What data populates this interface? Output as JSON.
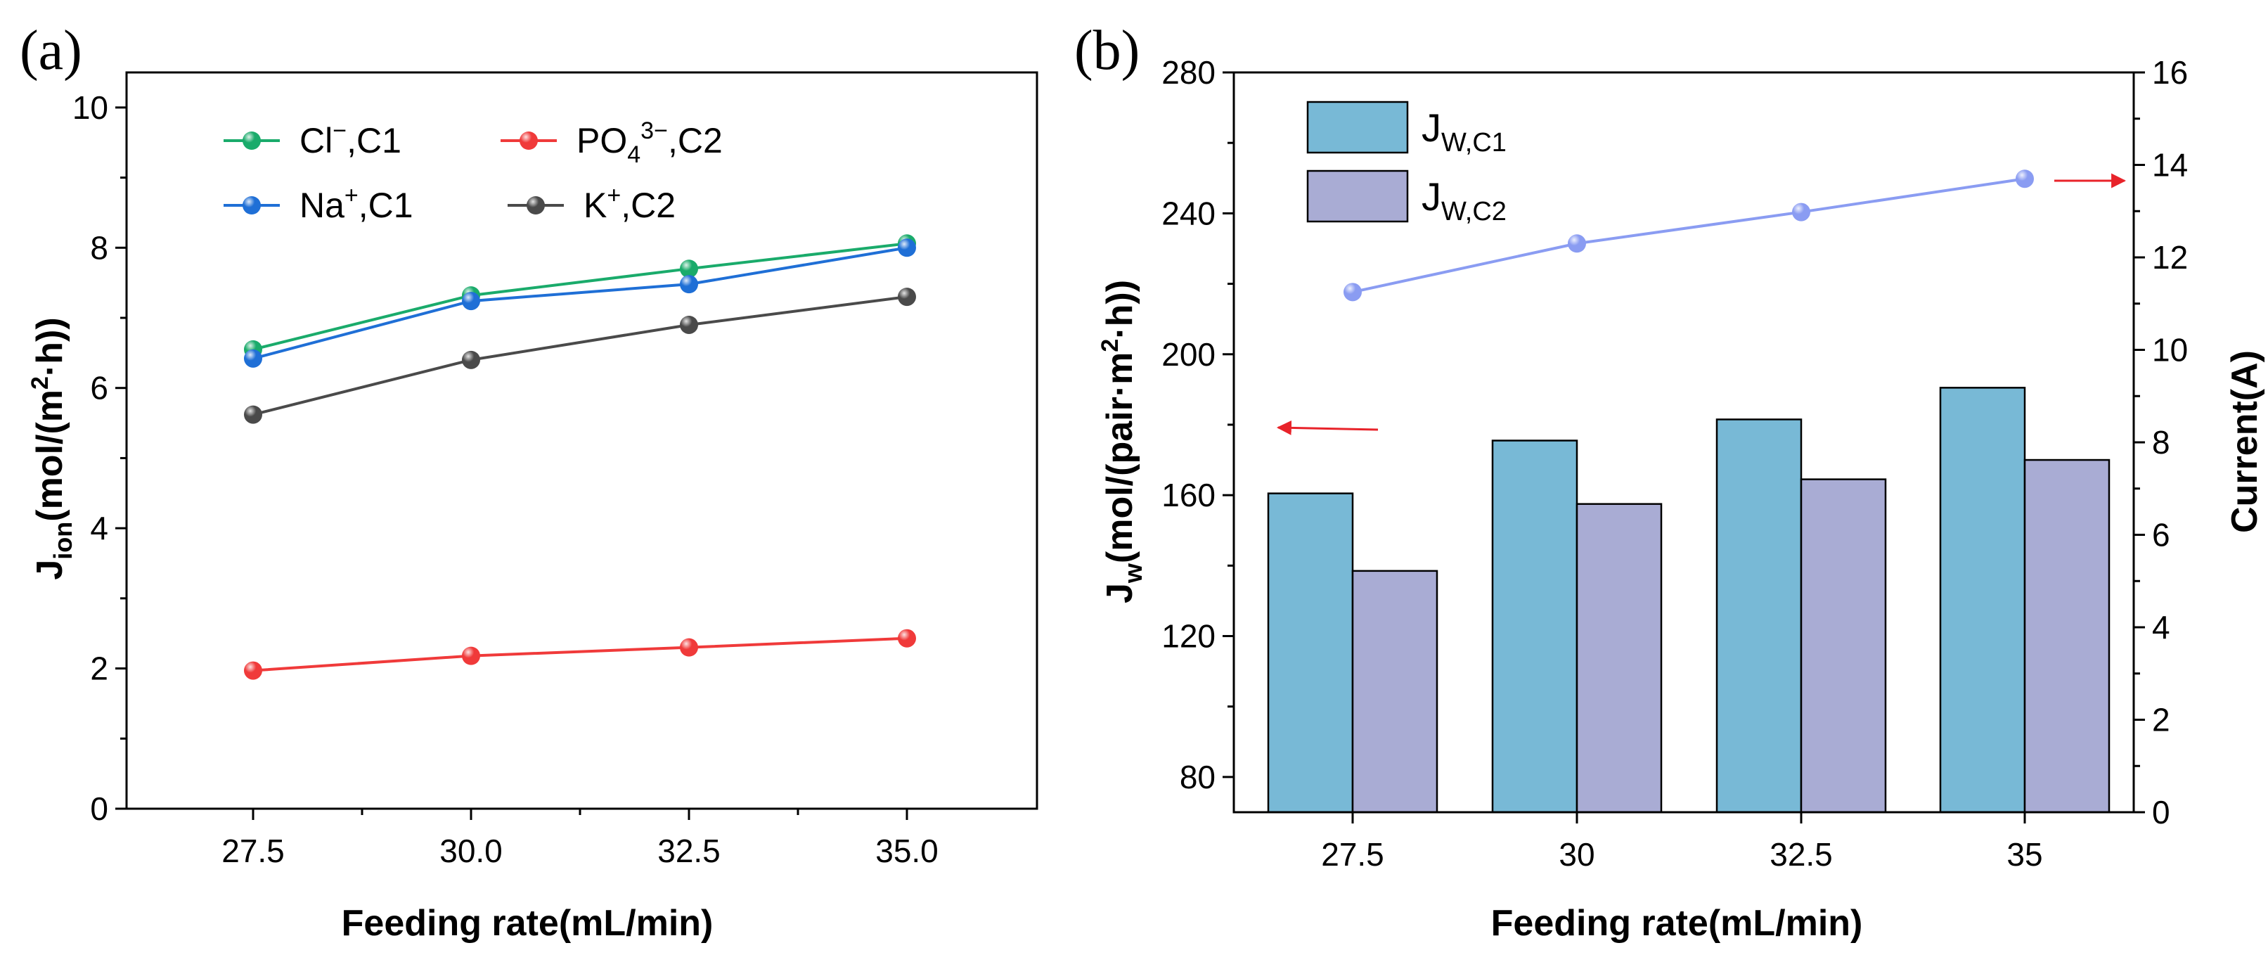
{
  "figure": {
    "panels": [
      "(a)",
      "(b)"
    ]
  },
  "chart_data": [
    {
      "id": "a",
      "type": "line",
      "panel_label": "(a)",
      "categories": [
        "27.5",
        "30.0",
        "32.5",
        "35.0"
      ],
      "xlabel": "Feeding rate(mL/min)",
      "ylabel": {
        "base": "J",
        "sub": "ion",
        "text": "(mol/(m",
        "sup": "2",
        "tail": "·h))"
      },
      "ylim": [
        0,
        10.5
      ],
      "yticks": [
        "0",
        "2",
        "4",
        "6",
        "8",
        "10"
      ],
      "series": [
        {
          "name": "Cl⁻,C1",
          "label_base": "Cl",
          "label_sup": "−",
          "label_tail": ",C1",
          "color": "#1aab6b",
          "values": [
            6.55,
            7.32,
            7.7,
            8.06
          ]
        },
        {
          "name": "PO₄³⁻,C2",
          "label_base": "PO",
          "label_sub": "4",
          "label_sup": "3−",
          "label_tail": ",C2",
          "color": "#f03a3a",
          "values": [
            1.97,
            2.18,
            2.3,
            2.43
          ]
        },
        {
          "name": "Na⁺,C1",
          "label_base": "Na",
          "label_sup": "+",
          "label_tail": ",C1",
          "color": "#1f6fd6",
          "values": [
            6.42,
            7.24,
            7.48,
            8.0
          ]
        },
        {
          "name": "K⁺,C2",
          "label_base": "K",
          "label_sup": "+",
          "label_tail": ",C2",
          "color": "#4a4a4a",
          "values": [
            5.62,
            6.4,
            6.9,
            7.3
          ]
        }
      ]
    },
    {
      "id": "b",
      "type": "bar",
      "panel_label": "(b)",
      "categories": [
        "27.5",
        "30",
        "32.5",
        "35"
      ],
      "xlabel": "Feeding rate(mL/min)",
      "ylabel": {
        "base": "J",
        "sub": "w",
        "text": "(mol/(pair·m",
        "sup": "2",
        "tail": "·h))"
      },
      "ylim": [
        70,
        280
      ],
      "yticks": [
        "80",
        "120",
        "160",
        "200",
        "240",
        "280"
      ],
      "y2label": "Current(A)",
      "y2lim": [
        0,
        16
      ],
      "y2ticks": [
        "0",
        "2",
        "4",
        "6",
        "8",
        "10",
        "12",
        "14",
        "16"
      ],
      "series": [
        {
          "name": "J_W,C1",
          "label_base": "J",
          "label_sub": "W,C1",
          "color": "#78b9d6",
          "values": [
            160.5,
            175.5,
            181.5,
            190.5
          ]
        },
        {
          "name": "J_W,C2",
          "label_base": "J",
          "label_sub": "W,C2",
          "color": "#a9acd4",
          "values": [
            138.5,
            157.5,
            164.5,
            170.0
          ]
        }
      ],
      "line_series": {
        "name": "Current",
        "axis": "right",
        "color": "#8a9cf2",
        "values": [
          11.25,
          12.3,
          12.98,
          13.7
        ]
      },
      "arrows": [
        {
          "direction": "left",
          "meaning": "bars read on left axis",
          "color": "#e8232a"
        },
        {
          "direction": "right",
          "meaning": "line reads on right axis",
          "color": "#e8232a"
        }
      ]
    }
  ]
}
